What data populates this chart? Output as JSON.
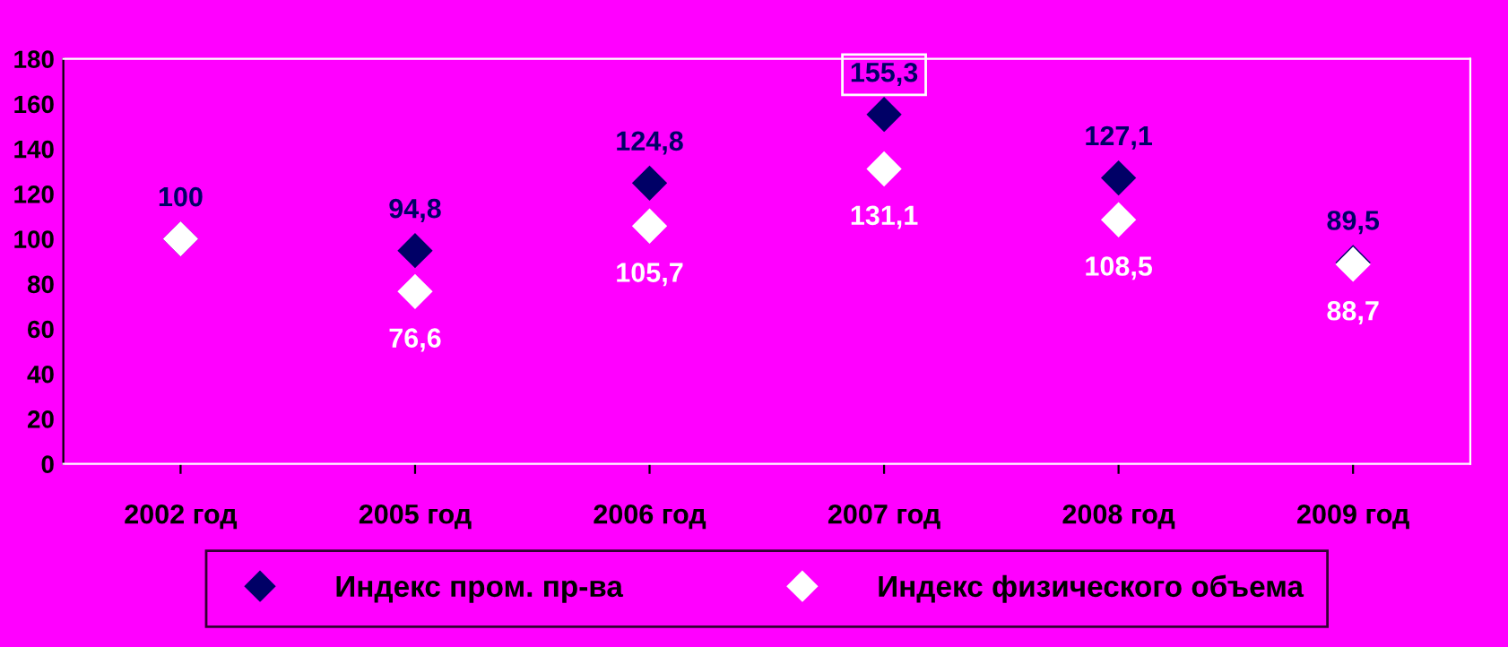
{
  "chart_data": {
    "type": "scatter",
    "categories": [
      "2002 год",
      "2005 год",
      "2006 год",
      "2007 год",
      "2008 год",
      "2009 год"
    ],
    "series": [
      {
        "name": "Индекс пром. пр-ва",
        "color": "#000066",
        "values": [
          100,
          94.8,
          124.8,
          155.3,
          127.1,
          89.5
        ],
        "value_labels": [
          "100",
          "94,8",
          "124,8",
          "155,3",
          "127,1",
          "89,5"
        ]
      },
      {
        "name": "Индекс физического объема",
        "color": "#ffffff",
        "values": [
          100,
          76.6,
          105.7,
          131.1,
          108.5,
          88.7
        ],
        "value_labels": [
          null,
          "76,6",
          "105,7",
          "131,1",
          "108,5",
          "88,7"
        ]
      }
    ],
    "ylim": [
      0,
      180
    ],
    "yticks": [
      0,
      20,
      40,
      60,
      80,
      100,
      120,
      140,
      160,
      180
    ],
    "grid": false,
    "legend": "bottom",
    "marker": "diamond"
  }
}
